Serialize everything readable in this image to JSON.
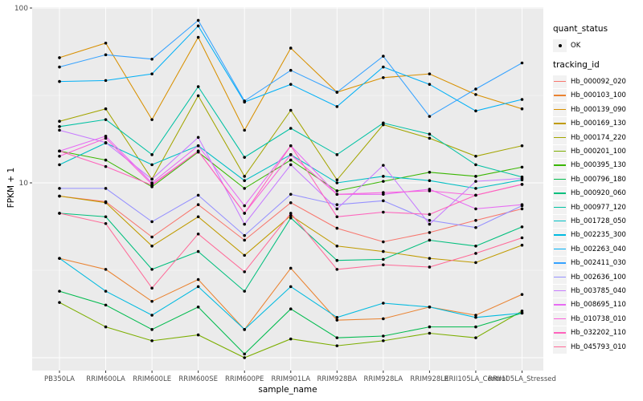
{
  "chart_data": {
    "type": "line",
    "title": "",
    "xlabel": "sample_name",
    "ylabel": "FPKM + 1",
    "yscale": "log10",
    "ylim": [
      0.85,
      100
    ],
    "grid": true,
    "legend_position": "right",
    "point_symbol": "black-dot",
    "panel_color": "#EBEBEB",
    "grid_color": "#FFFFFF",
    "tick_label_color": "#4D4D4D",
    "y_major_ticks": [
      {
        "value": 100,
        "label": "100"
      },
      {
        "value": 10,
        "label": "10"
      }
    ],
    "y_major_grid": [
      100,
      10,
      1
    ],
    "y_minor_grid": [
      31.62,
      3.162
    ],
    "categories": [
      "PB350LA",
      "RRIM600LA",
      "RRIM600LE",
      "RRIM600SE",
      "RRIM600PE",
      "RRIM901LA",
      "RRIM928BA",
      "RRIM928LA",
      "RRIM928LE",
      "RRII105LA_Control",
      "RRII105LA_Stressed"
    ],
    "legend": {
      "quant_status_title": "quant_status",
      "quant_status_item": "OK",
      "tracking_title": "tracking_id"
    },
    "series": [
      {
        "name": "Hb_000092_020",
        "color": "#F8766D",
        "values": [
          8.4,
          7.8,
          4.9,
          7.5,
          4.7,
          7.7,
          5.5,
          4.6,
          5.2,
          6.1,
          7.1
        ]
      },
      {
        "name": "Hb_000103_100",
        "color": "#EA8331",
        "values": [
          3.7,
          3.2,
          2.1,
          2.8,
          1.45,
          3.25,
          1.64,
          1.67,
          1.95,
          1.75,
          2.3
        ]
      },
      {
        "name": "Hb_000139_090",
        "color": "#D89000",
        "values": [
          52,
          63,
          23,
          68,
          20,
          59,
          33,
          40,
          42,
          32,
          26.5
        ]
      },
      {
        "name": "Hb_000169_130",
        "color": "#C09B00",
        "values": [
          8.4,
          7.7,
          4.35,
          6.4,
          3.85,
          6.5,
          4.35,
          4.05,
          3.7,
          3.5,
          4.4
        ]
      },
      {
        "name": "Hb_000174_220",
        "color": "#A3A500",
        "values": [
          22.5,
          26.5,
          10.5,
          31.5,
          10.9,
          26,
          10.4,
          21.5,
          18,
          14.2,
          16.3
        ]
      },
      {
        "name": "Hb_000201_100",
        "color": "#7CAE00",
        "values": [
          2.07,
          1.5,
          1.25,
          1.35,
          1.0,
          1.28,
          1.17,
          1.25,
          1.38,
          1.3,
          1.85
        ]
      },
      {
        "name": "Hb_000395_130",
        "color": "#39B600",
        "values": [
          15.2,
          13.5,
          9.5,
          15,
          9.3,
          13.5,
          9.0,
          10.2,
          11.5,
          10.9,
          12.3
        ]
      },
      {
        "name": "Hb_000796_180",
        "color": "#00BB4E",
        "values": [
          2.4,
          2.0,
          1.45,
          1.95,
          1.05,
          1.9,
          1.3,
          1.33,
          1.5,
          1.5,
          1.8
        ]
      },
      {
        "name": "Hb_000920_060",
        "color": "#00BF7D",
        "values": [
          6.7,
          6.4,
          3.2,
          4.05,
          2.4,
          6.3,
          3.6,
          3.65,
          4.7,
          4.35,
          5.6
        ]
      },
      {
        "name": "Hb_000977_120",
        "color": "#00C1A3",
        "values": [
          21,
          23,
          14.5,
          35.5,
          14,
          20.5,
          14.5,
          22,
          19,
          12.7,
          10.8
        ]
      },
      {
        "name": "Hb_001728_050",
        "color": "#00BFC4",
        "values": [
          12.7,
          16.9,
          12.7,
          16.3,
          10.3,
          14.5,
          10,
          10.9,
          10.3,
          9.3,
          10.4
        ]
      },
      {
        "name": "Hb_002235_300",
        "color": "#00BAE0",
        "values": [
          3.7,
          2.4,
          1.75,
          2.55,
          1.45,
          2.55,
          1.7,
          2.05,
          1.95,
          1.7,
          1.8
        ]
      },
      {
        "name": "Hb_002263_040",
        "color": "#00B0F6",
        "values": [
          38,
          38.5,
          42,
          79,
          29,
          36.6,
          27.3,
          46,
          36.6,
          25.8,
          30
        ]
      },
      {
        "name": "Hb_002411_030",
        "color": "#35A2FF",
        "values": [
          46,
          54,
          51,
          85,
          29.4,
          44,
          33,
          53,
          24,
          34.4,
          48.5
        ]
      },
      {
        "name": "Hb_002636_100",
        "color": "#9590FF",
        "values": [
          9.3,
          9.3,
          6.0,
          8.5,
          5.0,
          8.6,
          7.5,
          7.9,
          6.1,
          5.55,
          7.4
        ]
      },
      {
        "name": "Hb_003785_040",
        "color": "#C77CFF",
        "values": [
          20,
          17,
          10.5,
          18.2,
          5.8,
          12.7,
          7.1,
          12.6,
          5.8,
          10.2,
          10.6
        ]
      },
      {
        "name": "Hb_008695_110",
        "color": "#E76BF3",
        "values": [
          15.2,
          18.5,
          10,
          16.3,
          7.4,
          16.3,
          8.6,
          8.6,
          9.2,
          7.1,
          7.5
        ]
      },
      {
        "name": "Hb_010738_010",
        "color": "#FA62DB",
        "values": [
          14.2,
          18,
          9.8,
          15.2,
          6.7,
          14.5,
          8.6,
          8.8,
          9.0,
          8.5,
          9.8
        ]
      },
      {
        "name": "Hb_032202_110",
        "color": "#FF62BC",
        "values": [
          15.2,
          12.4,
          9.7,
          15.2,
          6.7,
          16.3,
          6.4,
          6.8,
          6.6,
          8.5,
          9.8
        ]
      },
      {
        "name": "Hb_045793_010",
        "color": "#FF6A98",
        "values": [
          6.7,
          5.85,
          2.5,
          5.1,
          3.1,
          6.7,
          3.2,
          3.4,
          3.3,
          3.95,
          4.85
        ]
      }
    ]
  }
}
